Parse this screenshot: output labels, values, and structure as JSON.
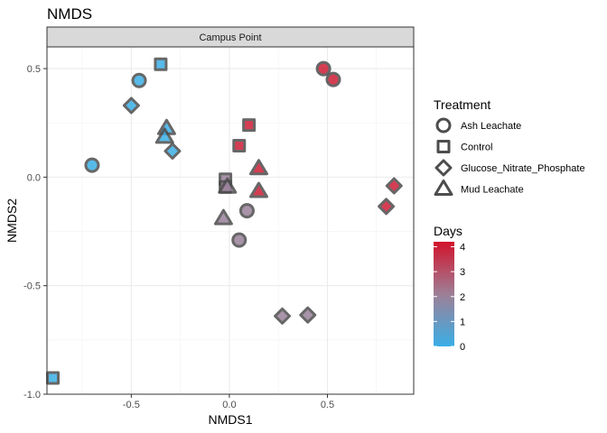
{
  "chart_data": {
    "type": "scatter",
    "title": "NMDS",
    "facet_label": "Campus Point",
    "xlabel": "NMDS1",
    "ylabel": "NMDS2",
    "xlim": [
      -0.93,
      0.94
    ],
    "ylim": [
      -1.0,
      0.6
    ],
    "x_ticks": [
      -0.5,
      0.0,
      0.5
    ],
    "x_tick_labels": [
      "-0.5",
      "0.0",
      "0.5"
    ],
    "y_ticks": [
      -1.0,
      -0.5,
      0.0,
      0.5
    ],
    "y_tick_labels": [
      "-1.0",
      "-0.5",
      "0.0",
      "0.5"
    ],
    "grid": true,
    "legend_position": "right",
    "shape_legend": {
      "title": "Treatment",
      "items": [
        {
          "label": "Ash Leachate",
          "shape": "circle"
        },
        {
          "label": "Control",
          "shape": "square"
        },
        {
          "label": "Glucose_Nitrate_Phosphate",
          "shape": "diamond"
        },
        {
          "label": "Mud Leachate",
          "shape": "triangle"
        }
      ]
    },
    "color_legend": {
      "title": "Days",
      "min": 0,
      "max": 4.2,
      "ticks": [
        0,
        1,
        2,
        3,
        4
      ],
      "tick_labels": [
        "0",
        "1",
        "2",
        "3",
        "4"
      ],
      "low_color": "#3aaee6",
      "mid_color": "#9e7f96",
      "high_color": "#d2132c"
    },
    "points": [
      {
        "x": -0.46,
        "y": 0.445,
        "treatment": "Ash Leachate",
        "days": 0
      },
      {
        "x": -0.7,
        "y": 0.055,
        "treatment": "Ash Leachate",
        "days": 0
      },
      {
        "x": 0.48,
        "y": 0.5,
        "treatment": "Ash Leachate",
        "days": 4
      },
      {
        "x": 0.53,
        "y": 0.45,
        "treatment": "Ash Leachate",
        "days": 4
      },
      {
        "x": 0.09,
        "y": -0.155,
        "treatment": "Ash Leachate",
        "days": 2
      },
      {
        "x": 0.05,
        "y": -0.29,
        "treatment": "Ash Leachate",
        "days": 2
      },
      {
        "x": -0.35,
        "y": 0.52,
        "treatment": "Control",
        "days": 0
      },
      {
        "x": -0.9,
        "y": -0.925,
        "treatment": "Control",
        "days": 0
      },
      {
        "x": 0.1,
        "y": 0.24,
        "treatment": "Control",
        "days": 4
      },
      {
        "x": 0.05,
        "y": 0.145,
        "treatment": "Control",
        "days": 4
      },
      {
        "x": -0.02,
        "y": -0.01,
        "treatment": "Control",
        "days": 2
      },
      {
        "x": -0.02,
        "y": -0.045,
        "treatment": "Control",
        "days": 2
      },
      {
        "x": -0.5,
        "y": 0.33,
        "treatment": "Glucose_Nitrate_Phosphate",
        "days": 0
      },
      {
        "x": -0.29,
        "y": 0.12,
        "treatment": "Glucose_Nitrate_Phosphate",
        "days": 0
      },
      {
        "x": 0.84,
        "y": -0.04,
        "treatment": "Glucose_Nitrate_Phosphate",
        "days": 4
      },
      {
        "x": 0.8,
        "y": -0.135,
        "treatment": "Glucose_Nitrate_Phosphate",
        "days": 4
      },
      {
        "x": 0.27,
        "y": -0.64,
        "treatment": "Glucose_Nitrate_Phosphate",
        "days": 2
      },
      {
        "x": 0.4,
        "y": -0.635,
        "treatment": "Glucose_Nitrate_Phosphate",
        "days": 2
      },
      {
        "x": -0.32,
        "y": 0.225,
        "treatment": "Mud Leachate",
        "days": 0
      },
      {
        "x": -0.33,
        "y": 0.185,
        "treatment": "Mud Leachate",
        "days": 0
      },
      {
        "x": 0.15,
        "y": 0.04,
        "treatment": "Mud Leachate",
        "days": 4
      },
      {
        "x": 0.15,
        "y": -0.065,
        "treatment": "Mud Leachate",
        "days": 4
      },
      {
        "x": -0.01,
        "y": -0.045,
        "treatment": "Mud Leachate",
        "days": 2
      },
      {
        "x": -0.03,
        "y": -0.19,
        "treatment": "Mud Leachate",
        "days": 2
      }
    ]
  }
}
